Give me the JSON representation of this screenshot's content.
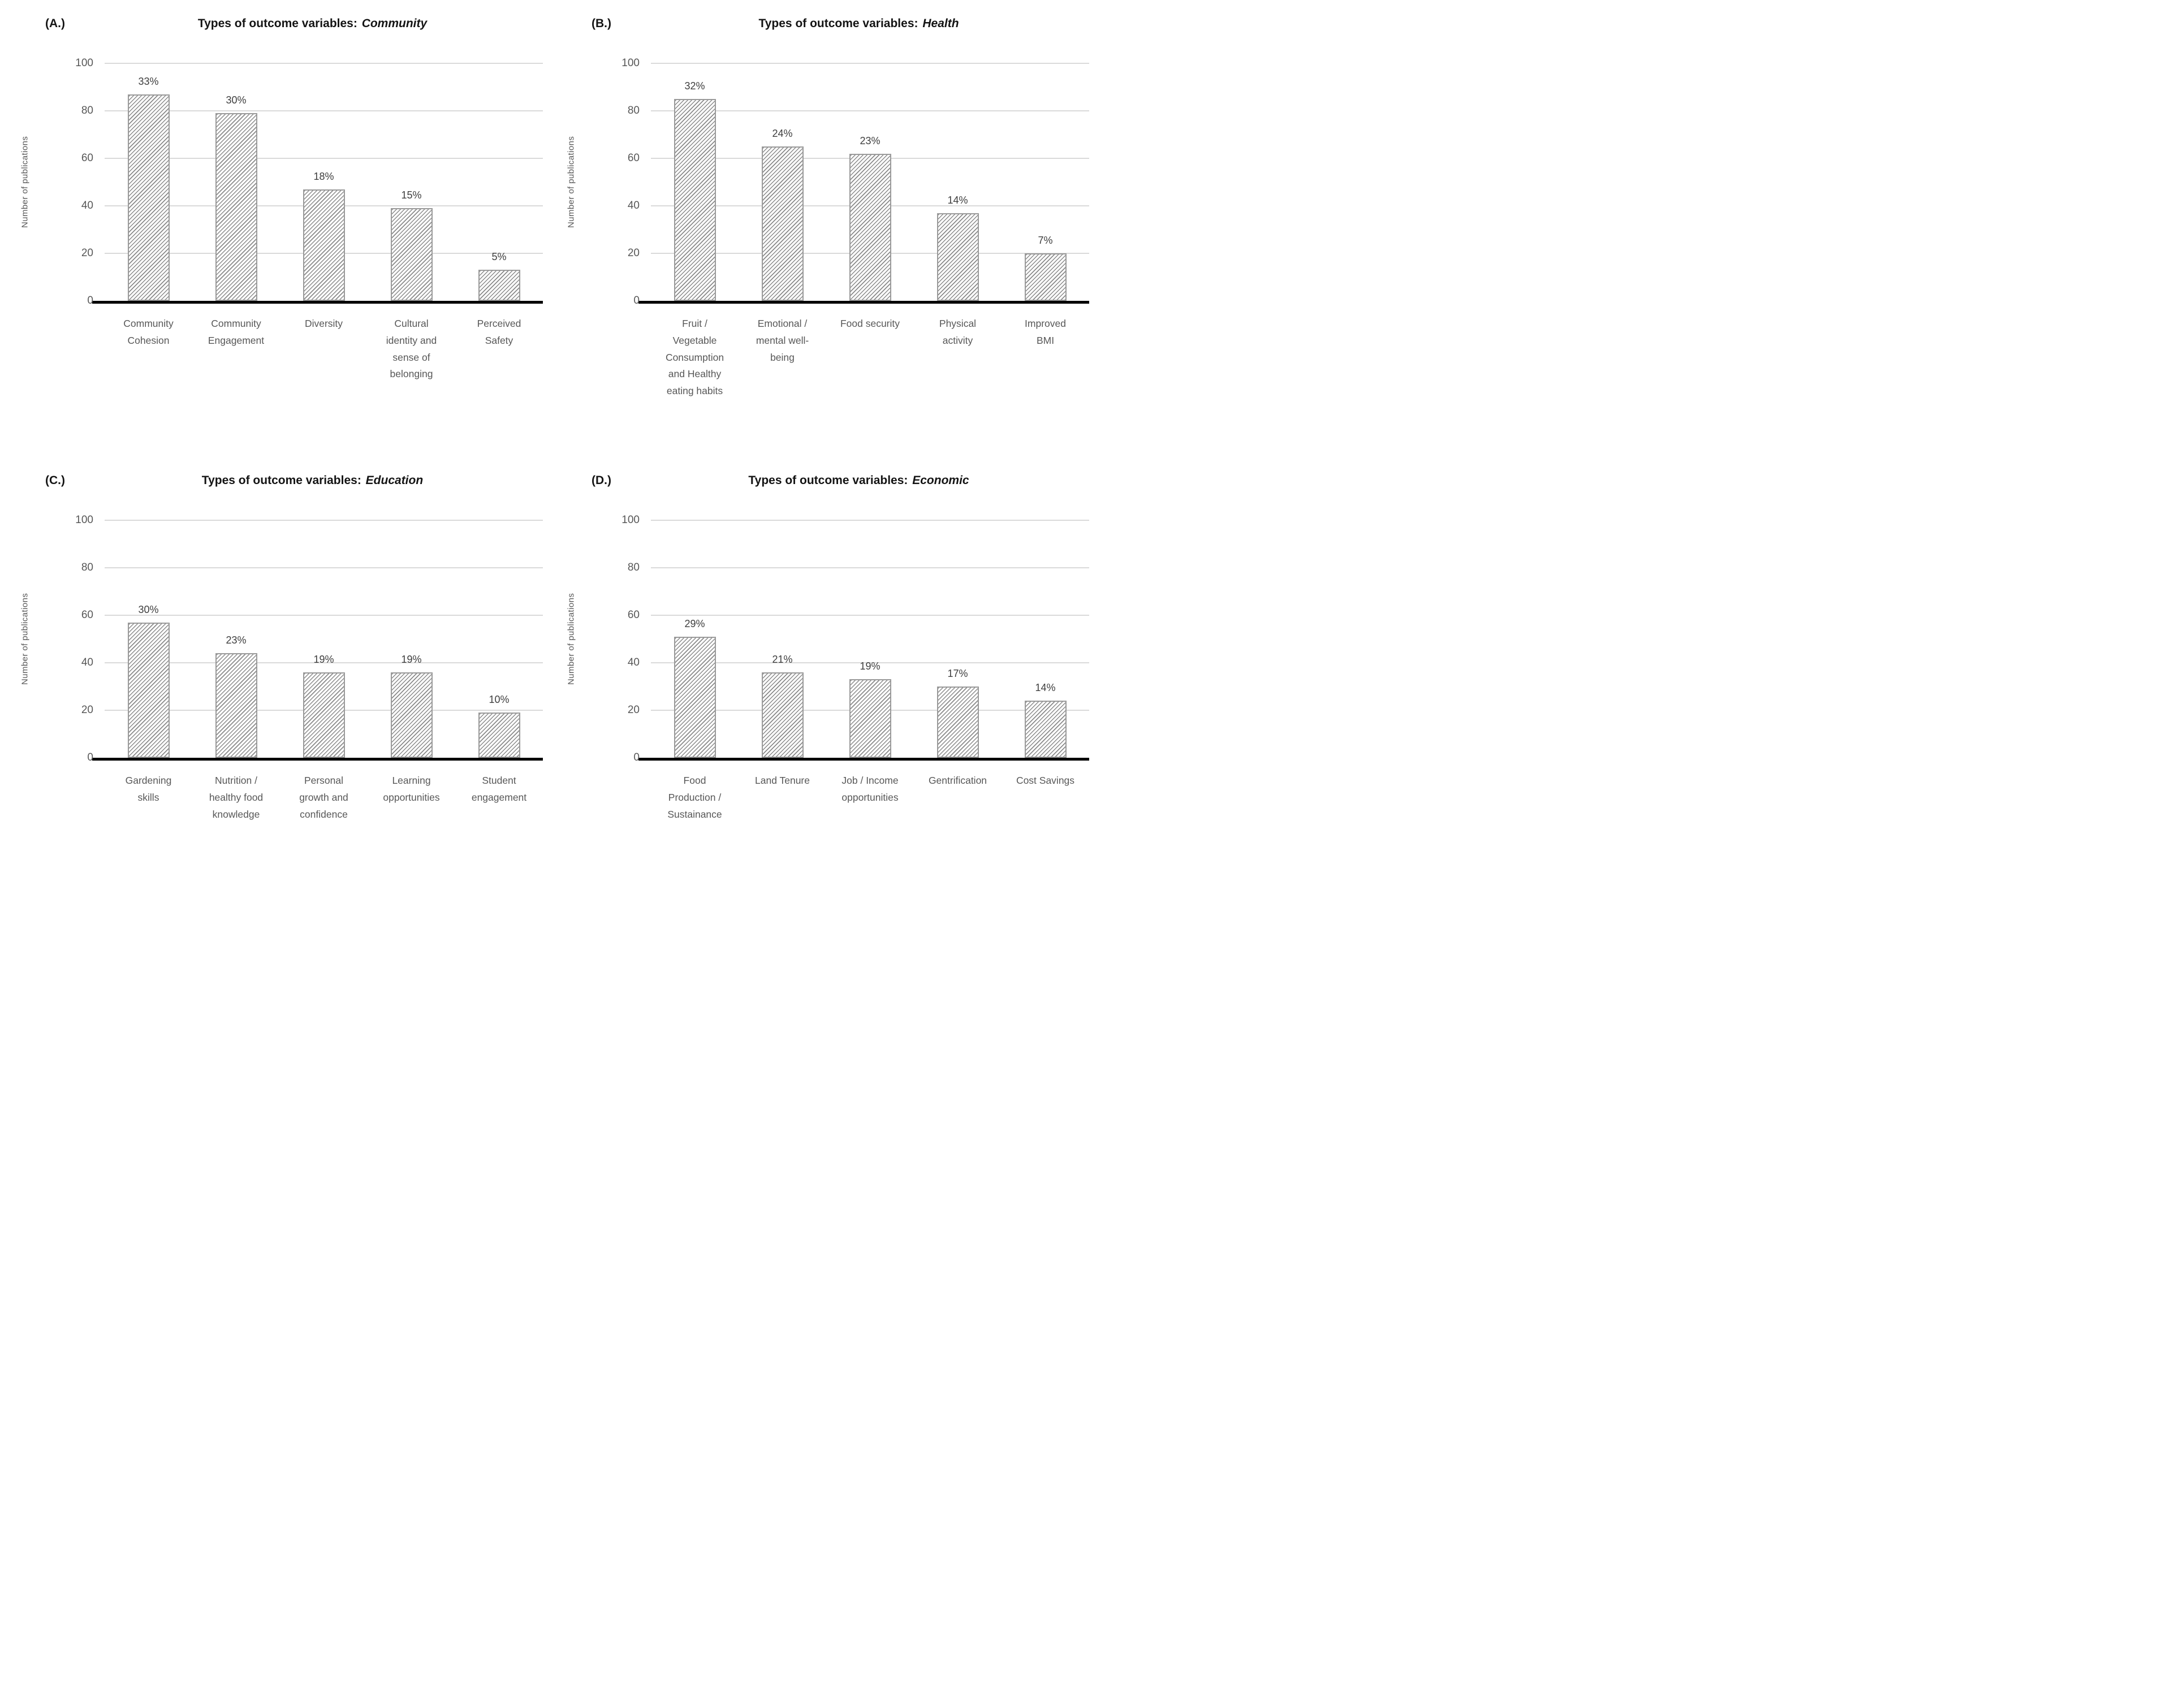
{
  "figure": {
    "description": "Four-panel bar chart figure of publication counts by outcome variable type",
    "ylabel": "Number of publications"
  },
  "style": {
    "axis_color": "#000000",
    "gridline_color": "#dadada",
    "bar_fill": "#ffffff",
    "bar_border": "#9a9a9a",
    "hatch_color": "#8a8a8a",
    "text_primary": "#141414",
    "text_secondary": "#575757",
    "text_label": "#3d3d3d"
  },
  "chart_data": [
    {
      "type": "bar",
      "panel_label": "(A.)",
      "title": "Types of outcome variables: Community",
      "title_prefix": "Types of outcome variables:",
      "title_category": "Community",
      "ylabel": "Number of publications",
      "ylim": [
        0,
        100
      ],
      "yticks": [
        100,
        80,
        60,
        40,
        20,
        0
      ],
      "grid": "horizontal",
      "legend": "none",
      "categories": [
        "Community\nCohesion",
        "Community\nEngagement",
        "Diversity",
        "Cultural\nidentity and\nsense of\nbelonging",
        "Perceived\nSafety"
      ],
      "values": [
        87,
        79,
        47,
        39,
        13
      ],
      "data_labels": [
        "33%",
        "30%",
        "18%",
        "15%",
        "5%"
      ]
    },
    {
      "type": "bar",
      "panel_label": "(B.)",
      "title": "Types of outcome variables: Health",
      "title_prefix": "Types of outcome variables:",
      "title_category": "Health",
      "ylabel": "Number of publications",
      "ylim": [
        0,
        100
      ],
      "yticks": [
        100,
        80,
        60,
        40,
        20,
        0
      ],
      "grid": "horizontal",
      "legend": "none",
      "categories": [
        "Fruit /\nVegetable\nConsumption\nand Healthy\neating habits",
        "Emotional /\nmental well-\nbeing",
        "Food security",
        "Physical\nactivity",
        "Improved\nBMI"
      ],
      "values": [
        85,
        65,
        62,
        37,
        20
      ],
      "data_labels": [
        "32%",
        "24%",
        "23%",
        "14%",
        "7%"
      ]
    },
    {
      "type": "bar",
      "panel_label": "(C.)",
      "title": "Types of outcome variables: Education",
      "title_prefix": "Types of outcome variables:",
      "title_category": "Education",
      "ylabel": "Number of publications",
      "ylim": [
        0,
        100
      ],
      "yticks": [
        100,
        80,
        60,
        40,
        20,
        0
      ],
      "grid": "horizontal",
      "legend": "none",
      "categories": [
        "Gardening\nskills",
        "Nutrition /\nhealthy food\nknowledge",
        "Personal\ngrowth and\nconfidence",
        "Learning\nopportunities",
        "Student\nengagement"
      ],
      "values": [
        57,
        44,
        36,
        36,
        19
      ],
      "data_labels": [
        "30%",
        "23%",
        "19%",
        "19%",
        "10%"
      ]
    },
    {
      "type": "bar",
      "panel_label": "(D.)",
      "title": "Types of outcome variables: Economic",
      "title_prefix": "Types of outcome variables:",
      "title_category": "Economic",
      "ylabel": "Number of publications",
      "ylim": [
        0,
        100
      ],
      "yticks": [
        100,
        80,
        60,
        40,
        20,
        0
      ],
      "grid": "horizontal",
      "legend": "none",
      "categories": [
        "Food\nProduction /\nSustainance",
        "Land Tenure",
        "Job / Income\nopportunities",
        "Gentrification",
        "Cost Savings"
      ],
      "values": [
        51,
        36,
        33,
        30,
        24
      ],
      "data_labels": [
        "29%",
        "21%",
        "19%",
        "17%",
        "14%"
      ]
    }
  ]
}
